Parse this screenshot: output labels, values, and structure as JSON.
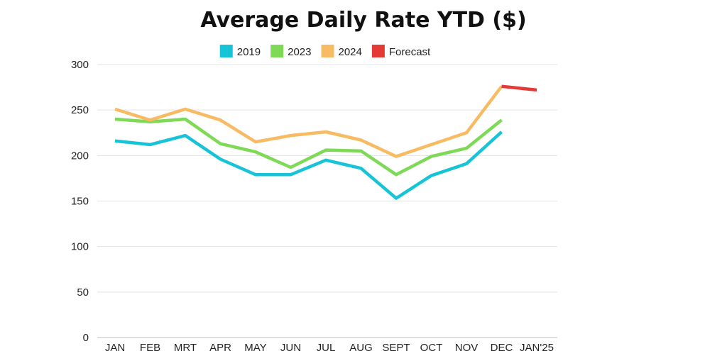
{
  "chart_data": {
    "type": "line",
    "title": "Average Daily Rate YTD ($)",
    "xlabel": "",
    "ylabel": "",
    "categories": [
      "JAN",
      "FEB",
      "MRT",
      "APR",
      "MAY",
      "JUN",
      "JUL",
      "AUG",
      "SEPT",
      "OCT",
      "NOV",
      "DEC",
      "JAN'25"
    ],
    "ylim": [
      0,
      300
    ],
    "yticks": [
      0,
      50,
      100,
      150,
      200,
      250,
      300
    ],
    "grid": true,
    "legend_position": "top-center",
    "series": [
      {
        "name": "2019",
        "color": "#17c3d6",
        "values": [
          216,
          212,
          222,
          196,
          179,
          179,
          195,
          186,
          153,
          178,
          191,
          226,
          null
        ]
      },
      {
        "name": "2023",
        "color": "#7ed957",
        "values": [
          240,
          237,
          240,
          213,
          204,
          187,
          206,
          205,
          179,
          199,
          208,
          239,
          null
        ]
      },
      {
        "name": "2024",
        "color": "#f7bb64",
        "values": [
          251,
          239,
          251,
          239,
          215,
          222,
          226,
          217,
          199,
          212,
          225,
          276,
          null
        ]
      },
      {
        "name": "Forecast",
        "color": "#e53935",
        "values": [
          null,
          null,
          null,
          null,
          null,
          null,
          null,
          null,
          null,
          null,
          null,
          276,
          272
        ]
      }
    ]
  }
}
